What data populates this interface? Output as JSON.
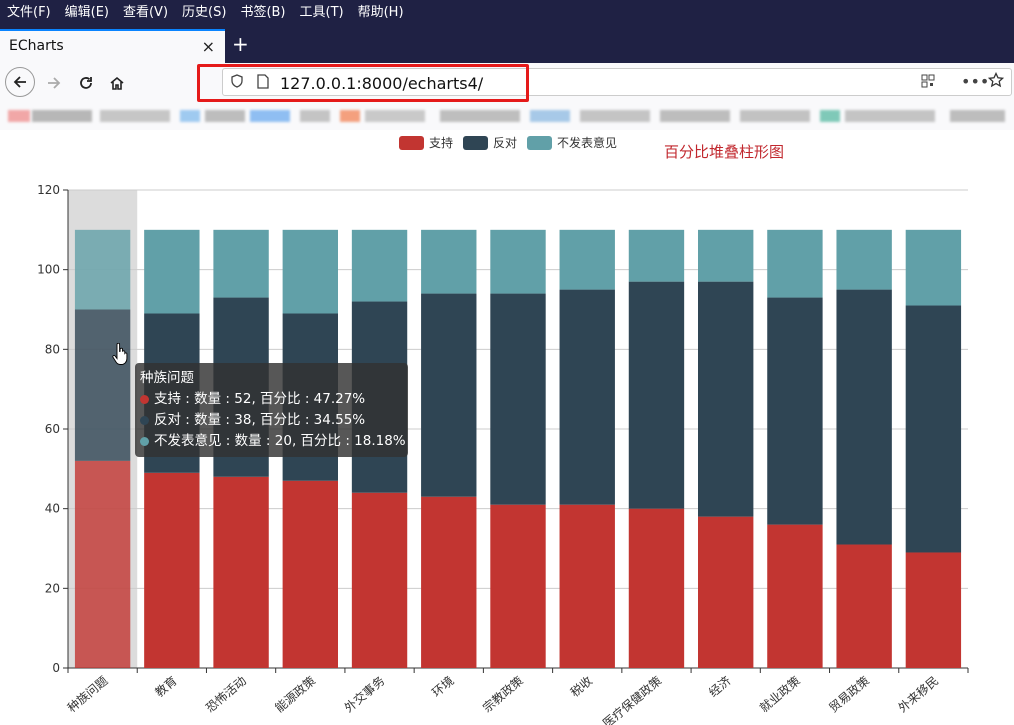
{
  "browser": {
    "menu": [
      "文件(F)",
      "编辑(E)",
      "查看(V)",
      "历史(S)",
      "书签(B)",
      "工具(T)",
      "帮助(H)"
    ],
    "tab": {
      "title": "ECharts",
      "close_icon": "×"
    },
    "new_tab_icon": "+",
    "url": "127.0.0.1:8000/echarts4/",
    "icons": {
      "back": "back-arrow-icon",
      "forward": "forward-arrow-icon",
      "reload": "reload-icon",
      "home": "home-icon",
      "shield": "shield-icon",
      "page": "page-icon",
      "qr": "qr-code-icon",
      "more": "more-icon",
      "bookmark": "star-icon"
    },
    "annotation_color": "#e51a1a"
  },
  "chart_data": {
    "type": "bar",
    "stacked": true,
    "title": "百分比堆叠柱形图",
    "categories": [
      "种族问题",
      "教育",
      "恐怖活动",
      "能源政策",
      "外交事务",
      "环境",
      "宗教政策",
      "税收",
      "医疗保健政策",
      "经济",
      "就业政策",
      "贸易政策",
      "外来移民"
    ],
    "series": [
      {
        "name": "支持",
        "color": "#c23531",
        "values": [
          52,
          49,
          48,
          47,
          44,
          43,
          41,
          41,
          40,
          38,
          36,
          31,
          29
        ]
      },
      {
        "name": "反对",
        "color": "#2f4554",
        "values": [
          38,
          40,
          45,
          42,
          48,
          51,
          53,
          54,
          57,
          59,
          57,
          64,
          62
        ]
      },
      {
        "name": "不发表意见",
        "color": "#61a0a8",
        "values": [
          20,
          21,
          17,
          21,
          18,
          16,
          16,
          15,
          13,
          13,
          17,
          15,
          19
        ]
      }
    ],
    "ylim": [
      0,
      120
    ],
    "yticks": [
      0,
      20,
      40,
      60,
      80,
      100,
      120
    ],
    "legend_position": "top",
    "grid": true,
    "highlighted_category": "种族问题"
  },
  "tooltip": {
    "title": "种族问题",
    "rows": [
      {
        "text": "支持 : 数量 : 52, 百分比 : 47.27%",
        "color": "#c23531"
      },
      {
        "text": "反对 : 数量 : 38, 百分比 : 34.55%",
        "color": "#2f4554"
      },
      {
        "text": "不发表意见 : 数量 : 20, 百分比 : 18.18%",
        "color": "#61a0a8"
      }
    ]
  }
}
